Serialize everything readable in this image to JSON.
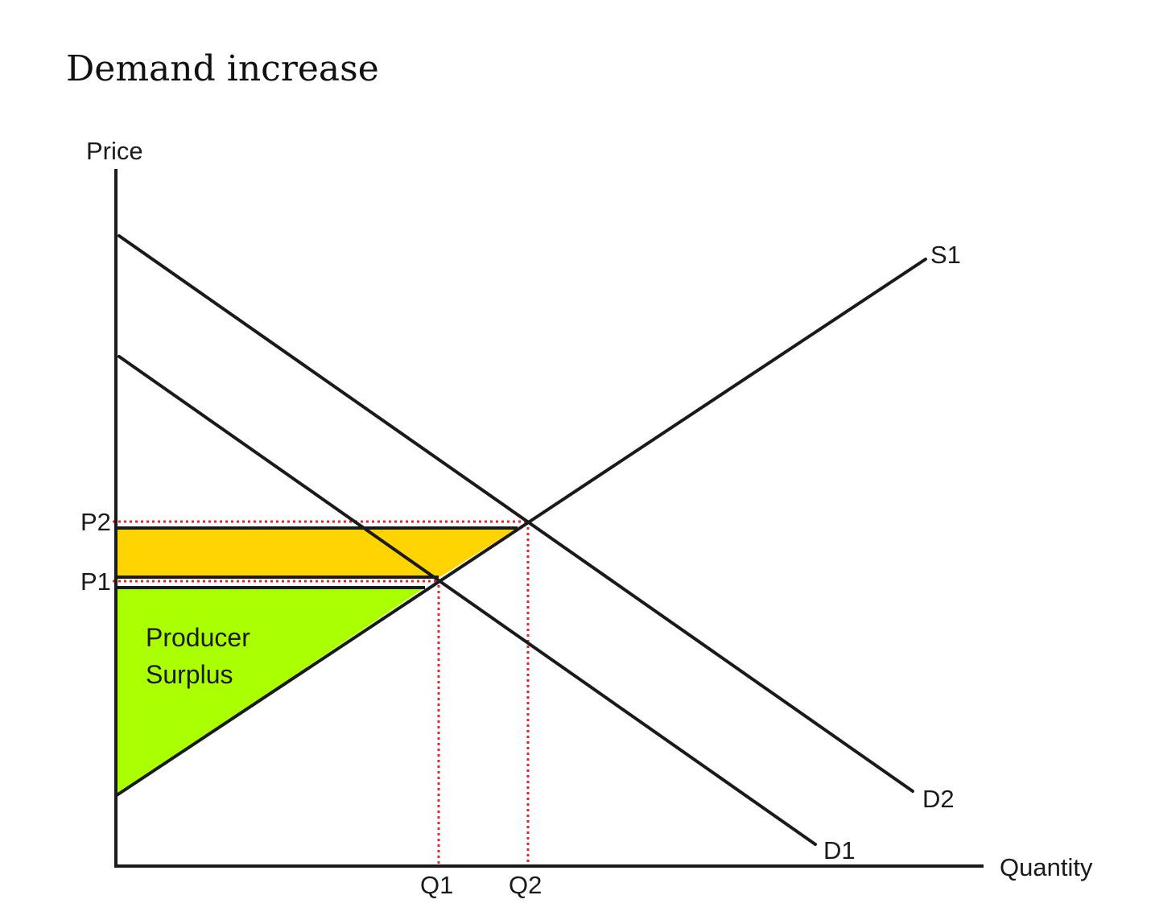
{
  "title": "Demand increase",
  "axes": {
    "y_label": "Price",
    "x_label": "Quantity"
  },
  "curves": {
    "supply": "S1",
    "demand_initial": "D1",
    "demand_new": "D2"
  },
  "levels": {
    "price_1": "P1",
    "price_2": "P2",
    "quantity_1": "Q1",
    "quantity_2": "Q2"
  },
  "regions": {
    "producer_surplus_line1": "Producer",
    "producer_surplus_line2": "Surplus"
  },
  "colors": {
    "producer_surplus": "#aaff00",
    "surplus_gain": "#ffd400",
    "guide_lines": "#e3262b",
    "lines": "#1a1a1a"
  }
}
